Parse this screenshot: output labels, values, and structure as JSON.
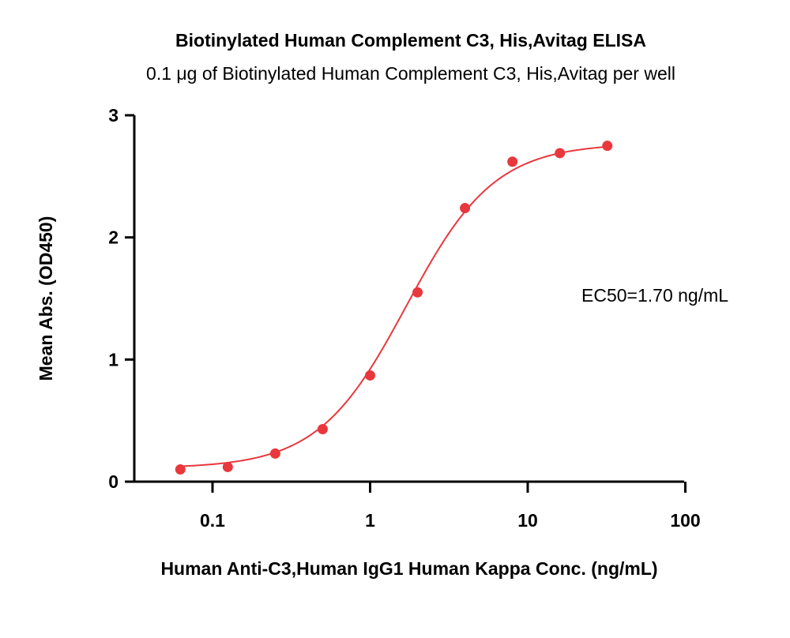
{
  "chart_data": {
    "type": "scatter",
    "title": "Biotinylated Human Complement C3, His,Avitag ELISA",
    "subtitle": "0.1 μg of Biotinylated Human Complement C3, His,Avitag per well",
    "xlabel": "Human Anti-C3,Human IgG1  Human Kappa Conc. (ng/mL)",
    "ylabel": "Mean Abs. (OD450)",
    "x_scale": "log",
    "xlim": [
      0.04,
      100
    ],
    "ylim": [
      0,
      3
    ],
    "x_ticks": [
      0.1,
      1,
      10,
      100
    ],
    "x_tick_labels": [
      "0.1",
      "1",
      "10",
      "100"
    ],
    "y_ticks": [
      0,
      1,
      2,
      3
    ],
    "y_tick_labels": [
      "0",
      "1",
      "2",
      "3"
    ],
    "grid": false,
    "color": "#e8383d",
    "series": [
      {
        "x": [
          0.0625,
          0.125,
          0.25,
          0.5,
          1,
          2,
          4,
          8,
          16,
          32
        ],
        "y": [
          0.1,
          0.12,
          0.23,
          0.43,
          0.87,
          1.55,
          2.24,
          2.62,
          2.69,
          2.75
        ]
      }
    ],
    "fit": {
      "bottom": 0.11,
      "top": 2.77,
      "ec50": 1.7,
      "hill": 1.55
    },
    "annotation": "EC50=1.70 ng/mL"
  }
}
